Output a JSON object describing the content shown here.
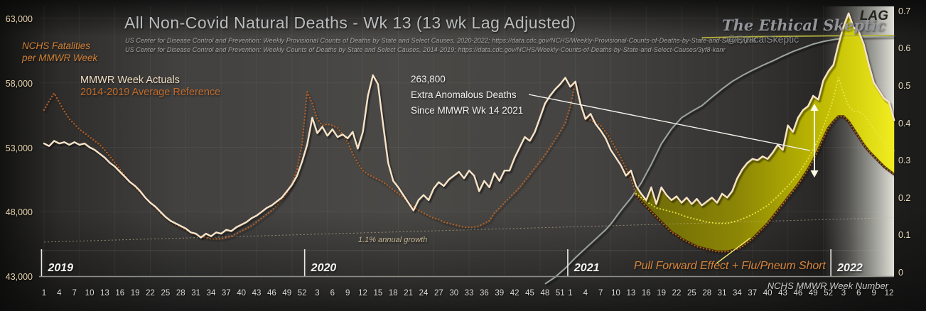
{
  "header": {
    "title": "All Non-Covid Natural Deaths - Wk 13 (13 wk Lag Adjusted)",
    "source_line1": "US Center for Disease Control and Prevention: Weekly  Provisional Counts of Deaths by State and Select Causes, 2020-2022; https://data.cdc.gov/NCHS/Weekly-Provisional-Counts-of-Deaths-by-State-and-S/muzy-jte6",
    "source_line2": "US Center for Disease Control and Prevention: Weekly  Counts of Deaths by State and Select Causes, 2014-2019; https://data.cdc.gov/NCHS/Weekly-Counts-of-Deaths-by-State-and-Select-Causes/3yf8-kanr"
  },
  "watermark": {
    "name": "The Ethical Skeptic",
    "handle": "@EthicalSkeptic"
  },
  "left_axis": {
    "title_line1": "NCHS Fatalities",
    "title_line2": "per MMWR Week",
    "ticks": [
      {
        "label": "63,000",
        "value": 63000
      },
      {
        "label": "58,000",
        "value": 58000
      },
      {
        "label": "53,000",
        "value": 53000
      },
      {
        "label": "48,000",
        "value": 48000
      },
      {
        "label": "43,000",
        "value": 43000
      }
    ]
  },
  "right_axis": {
    "label": "LAG",
    "ticks": [
      {
        "label": "0.7",
        "value": 0.7
      },
      {
        "label": "0.6",
        "value": 0.6
      },
      {
        "label": "0.5",
        "value": 0.5
      },
      {
        "label": "0.4",
        "value": 0.4
      },
      {
        "label": "0.3",
        "value": 0.3
      },
      {
        "label": "0.2",
        "value": 0.2
      },
      {
        "label": "0.1",
        "value": 0.1
      },
      {
        "label": "0",
        "value": 0
      }
    ]
  },
  "x_axis": {
    "label": "NCHS MMWR Week Number",
    "years": [
      {
        "label": "2019",
        "start_index": 0,
        "tick_weeks": [
          1,
          4,
          7,
          10,
          13,
          16,
          19,
          22,
          25,
          28,
          31,
          34,
          37,
          40,
          43,
          46,
          49,
          52
        ]
      },
      {
        "label": "2020",
        "start_index": 52,
        "tick_weeks": [
          3,
          6,
          9,
          12,
          15,
          18,
          21,
          24,
          27,
          30,
          33,
          36,
          39,
          42,
          45,
          48,
          51
        ]
      },
      {
        "label": "2021",
        "start_index": 104,
        "tick_weeks": [
          1,
          4,
          7,
          10,
          13,
          16,
          19,
          22,
          25,
          28,
          31,
          34,
          37,
          40,
          43,
          46,
          49,
          52
        ]
      },
      {
        "label": "2022",
        "start_index": 156,
        "tick_weeks": [
          3,
          6,
          9,
          12
        ]
      }
    ]
  },
  "legend": {
    "actuals": "MMWR Week Actuals",
    "reference": "2014-2019  Average Reference"
  },
  "annotations": {
    "extra_deaths_line1": "263,800",
    "extra_deaths_line2": "Extra Anomalous Deaths",
    "extra_deaths_line3": "Since MMWR Wk 14 2021",
    "growth": "1.1% annual growth",
    "pull_forward": "Pull Forward Effect + Flu/Pneum Short"
  },
  "colors": {
    "actuals_line": "#f7e3c8",
    "reference_dotted": "#b25f26",
    "adjusted_reference_dotted": "#e9e63e",
    "excess_fill_left": "#6e6906",
    "excess_fill_right": "#f2ee18",
    "lag_line": "#9ba49b",
    "lag_flat_line": "#b6b23c",
    "trend_line": "#c8b795",
    "annotation_line": "#f3f3ec",
    "band": "#e4e4dc"
  },
  "chart_data": {
    "type": "line",
    "x_unit": "MMWR week index (0 = 2019 week 1, through 2022 week 13)",
    "left_ylim": [
      43000,
      63000
    ],
    "right_ylim": [
      0,
      0.7
    ],
    "grid": "faint vertical every 7 weeks",
    "legend_position": "top-left inside plot",
    "series": [
      {
        "name": "MMWR Week Actuals",
        "axis": "left",
        "style": "solid",
        "color": "#f7e3c8",
        "values_by_week": [
          53300,
          53100,
          53500,
          53300,
          53400,
          53200,
          53400,
          53200,
          53300,
          53000,
          52800,
          52500,
          52200,
          51800,
          51500,
          51100,
          50700,
          50300,
          50000,
          49600,
          49100,
          48700,
          48400,
          48000,
          47600,
          47300,
          47100,
          46900,
          46700,
          46400,
          46300,
          46000,
          46300,
          46100,
          46400,
          46300,
          46600,
          46500,
          46800,
          47000,
          47200,
          47500,
          47700,
          48000,
          48300,
          48500,
          48800,
          49100,
          49600,
          50100,
          50800,
          51900,
          53200,
          55300,
          54100,
          54600,
          53900,
          54400,
          53800,
          54000,
          53700,
          54200,
          52900,
          54200,
          57000,
          58600,
          57900,
          54800,
          51800,
          50400,
          49900,
          49300,
          48700,
          48100,
          48900,
          49300,
          48900,
          49800,
          50300,
          50000,
          50500,
          50800,
          51100,
          50600,
          51200,
          50800,
          49600,
          50400,
          49900,
          51000,
          50400,
          51200,
          51200,
          52200,
          53000,
          53800,
          53500,
          54200,
          55300,
          56400,
          57000,
          57500,
          57900,
          58400,
          57700,
          58100,
          56400,
          55200,
          55600,
          54800,
          54300,
          53700,
          52800,
          52200,
          51600,
          50800,
          51200,
          50000,
          49400,
          48900,
          49900,
          48600,
          49900,
          49300,
          48900,
          49200,
          48700,
          49100,
          48600,
          49000,
          48500,
          48800,
          49100,
          48700,
          49400,
          49100,
          49600,
          50600,
          51300,
          51800,
          52100,
          52000,
          52300,
          52100,
          52600,
          53200,
          52800,
          54700,
          54200,
          55300,
          55900,
          56200,
          57000,
          56700,
          58200,
          58900,
          59400,
          61000,
          62400,
          63400,
          62300,
          62000,
          61000,
          59400,
          58000,
          57400,
          56800,
          56500,
          55100
        ]
      },
      {
        "name": "2014-2019 Average Reference",
        "axis": "left",
        "style": "dotted",
        "color": "#b25f26",
        "values_by_week": [
          55900,
          56600,
          57200,
          56500,
          55800,
          55200,
          54800,
          54400,
          54100,
          53800,
          53500,
          53200,
          52800,
          52300,
          51800,
          51300,
          50800,
          50300,
          49900,
          49500,
          49100,
          48700,
          48300,
          47900,
          47600,
          47300,
          47000,
          46800,
          46600,
          46400,
          46200,
          46100,
          46000,
          45900,
          45900,
          45900,
          46000,
          46100,
          46300,
          46500,
          46700,
          46900,
          47200,
          47500,
          47800,
          48100,
          48500,
          48900,
          49400,
          50200,
          51300,
          53300,
          57300,
          56400,
          55200,
          54700,
          54800,
          54700,
          54500,
          54000,
          53400,
          52500,
          51800,
          51200,
          50900,
          50700,
          50500,
          50300,
          50000,
          49700,
          49400,
          49100,
          48700,
          48400,
          48100,
          47900,
          47700,
          47500,
          47400,
          47200,
          47100,
          47000,
          46900,
          46800,
          46800,
          46800,
          46900,
          47100,
          47300,
          47900,
          48300,
          48700,
          49100,
          49500,
          49900,
          50400,
          50900,
          51400,
          51900,
          52400,
          53000,
          53600,
          54200,
          54900,
          56200,
          58100,
          56300,
          55400,
          55100,
          54900,
          54700,
          54200,
          53600,
          52900,
          52200,
          51400,
          50600,
          49300,
          48800,
          48400,
          48000,
          47600,
          47200,
          46800,
          46400,
          46200,
          45900,
          45700,
          45500,
          45300,
          45200,
          45100,
          45000,
          44900,
          44900,
          44900,
          45000,
          45100,
          45300,
          45600,
          45900,
          46300,
          46700,
          47100,
          47600,
          48100,
          48600,
          49100,
          49600,
          50100,
          50700,
          51300,
          52000,
          52800,
          53700,
          54500,
          55000,
          55400,
          55400,
          55000,
          54400,
          53800,
          53200,
          52700,
          52300,
          51900,
          51500,
          51200,
          50900
        ]
      },
      {
        "name": "Flu/Pneum adjusted reference (yellow dotted)",
        "axis": "left",
        "style": "dotted",
        "color": "#e9e63e",
        "points": [
          [
            117,
            49400
          ],
          [
            119,
            48800
          ],
          [
            121,
            48300
          ],
          [
            123,
            48100
          ],
          [
            125,
            47900
          ],
          [
            127,
            47600
          ],
          [
            129,
            47400
          ],
          [
            131,
            47200
          ],
          [
            133,
            47100
          ],
          [
            135,
            47100
          ],
          [
            137,
            47300
          ],
          [
            139,
            47600
          ],
          [
            141,
            48000
          ],
          [
            143,
            48500
          ],
          [
            145,
            49200
          ],
          [
            147,
            50000
          ],
          [
            149,
            50900
          ],
          [
            151,
            52100
          ],
          [
            153,
            53600
          ],
          [
            155,
            55600
          ],
          [
            156,
            56800
          ],
          [
            157,
            58400
          ],
          [
            158,
            57200
          ],
          [
            159,
            56200
          ],
          [
            160,
            55800
          ],
          [
            161,
            55800
          ],
          [
            162,
            55500
          ],
          [
            163,
            55000
          ],
          [
            164,
            54400
          ],
          [
            165,
            53900
          ],
          [
            166,
            53400
          ],
          [
            167,
            53000
          ],
          [
            168,
            52700
          ]
        ]
      },
      {
        "name": "LAG cumulative (gray)",
        "axis": "right",
        "style": "solid",
        "color": "#9ba49b",
        "points": [
          [
            99,
            -0.03
          ],
          [
            101,
            -0.012
          ],
          [
            103,
            0.012
          ],
          [
            105,
            0.04
          ],
          [
            107,
            0.065
          ],
          [
            109,
            0.09
          ],
          [
            111,
            0.115
          ],
          [
            112,
            0.13
          ],
          [
            114,
            0.167
          ],
          [
            116,
            0.2
          ],
          [
            118,
            0.24
          ],
          [
            120,
            0.29
          ],
          [
            122,
            0.345
          ],
          [
            124,
            0.385
          ],
          [
            126,
            0.415
          ],
          [
            128,
            0.432
          ],
          [
            130,
            0.447
          ],
          [
            132,
            0.47
          ],
          [
            134,
            0.492
          ],
          [
            136,
            0.512
          ],
          [
            138,
            0.528
          ],
          [
            140,
            0.542
          ],
          [
            142,
            0.555
          ],
          [
            144,
            0.567
          ],
          [
            146,
            0.58
          ],
          [
            148,
            0.592
          ],
          [
            150,
            0.602
          ],
          [
            152,
            0.612
          ],
          [
            154,
            0.619
          ],
          [
            156,
            0.624
          ],
          [
            158,
            0.628
          ],
          [
            160,
            0.631
          ],
          [
            163,
            0.632
          ],
          [
            168,
            0.633
          ]
        ]
      },
      {
        "name": "LAG flat level (olive)",
        "axis": "right",
        "style": "solid",
        "color": "#b6b23c",
        "points": [
          [
            130,
            0.629
          ],
          [
            140,
            0.632
          ],
          [
            155,
            0.634
          ],
          [
            168,
            0.635
          ]
        ]
      },
      {
        "name": "1.1% annual growth trend",
        "axis": "left",
        "style": "dashed",
        "color": "#c8b795",
        "points": [
          [
            0,
            45650
          ],
          [
            168,
            47550
          ]
        ]
      }
    ],
    "fill_between": {
      "name": "Extra anomalous deaths (263,800 since MMWR Wk 14 2021)",
      "upper": "MMWR Week Actuals",
      "lower": "2014-2019 Average Reference",
      "from_week_index": 117,
      "to_week_index": 168,
      "gradient": [
        "#6e6906",
        "#f2ee18"
      ]
    }
  }
}
